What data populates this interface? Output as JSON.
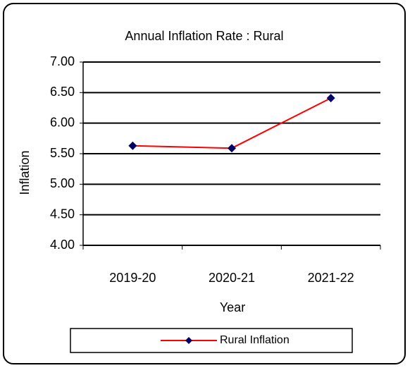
{
  "chart_data": {
    "type": "line",
    "title": "Annual Inflation Rate :  Rural",
    "x_label": "Year",
    "y_label": "Inflation",
    "categories": [
      "2019-20",
      "2020-21",
      "2021-22"
    ],
    "series": [
      {
        "name": "Rural Inflation",
        "color": "#ff0000",
        "marker_color": "#000066",
        "values": [
          5.63,
          5.59,
          6.41
        ]
      }
    ],
    "ylim": [
      4,
      7
    ],
    "yticks": [
      {
        "value": 4,
        "label": "4.00"
      },
      {
        "value": 4.5,
        "label": "4.50"
      },
      {
        "value": 5,
        "label": "5.00"
      },
      {
        "value": 5.5,
        "label": "5.50"
      },
      {
        "value": 6,
        "label": "6.00"
      },
      {
        "value": 6.5,
        "label": "6.50"
      },
      {
        "value": 7,
        "label": "7.00"
      }
    ],
    "grid": true,
    "legend": "bottom"
  }
}
